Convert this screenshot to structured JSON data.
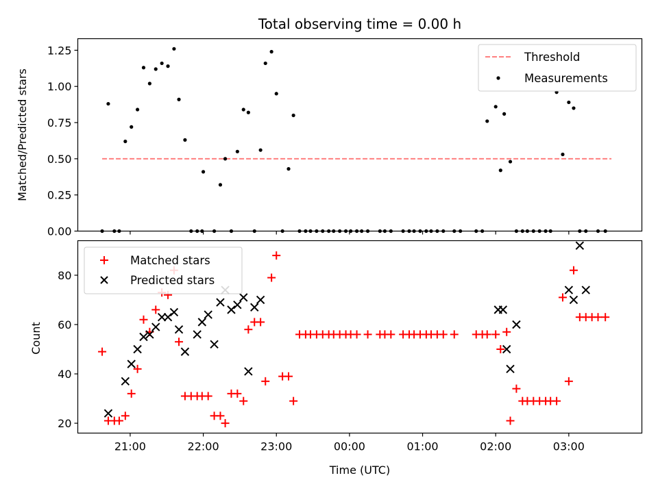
{
  "chart_data": [
    {
      "type": "scatter",
      "title": "Total observing time = 0.00 h",
      "ylabel": "Matched/Predicted stars",
      "xlabel": "",
      "ylim": [
        0,
        1.33
      ],
      "yticks": [
        0.0,
        0.25,
        0.5,
        0.75,
        1.0,
        1.25
      ],
      "ytick_labels": [
        "0.00",
        "0.25",
        "0.50",
        "0.75",
        "1.00",
        "1.25"
      ],
      "legend_position": "top-right",
      "legend": [
        "Threshold",
        "Measurements"
      ],
      "threshold": {
        "name": "Threshold",
        "y": 0.5,
        "x_start": "20:37",
        "x_end": "03:35",
        "color": "#ff7f7f",
        "style": "dashed"
      },
      "series": [
        {
          "name": "Measurements",
          "color": "#000000",
          "marker": "dot",
          "x": [
            "20:37",
            "20:42",
            "20:47",
            "20:51",
            "20:56",
            "21:01",
            "21:06",
            "21:11",
            "21:16",
            "21:21",
            "21:26",
            "21:31",
            "21:36",
            "21:40",
            "21:45",
            "21:50",
            "21:55",
            "21:59",
            "22:00",
            "22:09",
            "22:14",
            "22:18",
            "22:23",
            "22:28",
            "22:33",
            "22:37",
            "22:42",
            "22:47",
            "22:51",
            "22:56",
            "23:00",
            "23:05",
            "23:10",
            "23:14",
            "23:19",
            "23:24",
            "23:28",
            "23:33",
            "23:38",
            "23:43",
            "23:47",
            "23:52",
            "23:57",
            "00:01",
            "00:06",
            "00:10",
            "00:15",
            "00:25",
            "00:29",
            "00:34",
            "00:44",
            "00:49",
            "00:53",
            "00:58",
            "01:03",
            "01:07",
            "01:12",
            "01:17",
            "01:26",
            "01:31",
            "01:44",
            "01:49",
            "01:53",
            "02:00",
            "02:04",
            "02:07",
            "02:12",
            "02:17",
            "02:22",
            "02:26",
            "02:31",
            "02:36",
            "02:41",
            "02:45",
            "02:50",
            "02:55",
            "03:00",
            "03:04",
            "03:09",
            "03:14",
            "03:24",
            "03:30"
          ],
          "y": [
            0.0,
            0.88,
            0.0,
            0.0,
            0.62,
            0.72,
            0.84,
            1.13,
            1.02,
            1.12,
            1.16,
            1.14,
            1.26,
            0.91,
            0.63,
            0.0,
            0.0,
            0.0,
            0.41,
            0.0,
            0.32,
            0.5,
            0.0,
            0.55,
            0.84,
            0.82,
            0.0,
            0.56,
            1.16,
            1.24,
            0.95,
            0.0,
            0.43,
            0.8,
            0.0,
            0.0,
            0.0,
            0.0,
            0.0,
            0.0,
            0.0,
            0.0,
            0.0,
            0.0,
            0.0,
            0.0,
            0.0,
            0.0,
            0.0,
            0.0,
            0.0,
            0.0,
            0.0,
            0.0,
            0.0,
            0.0,
            0.0,
            0.0,
            0.0,
            0.0,
            0.0,
            0.0,
            0.76,
            0.86,
            0.42,
            0.81,
            0.48,
            0.0,
            0.0,
            0.0,
            0.0,
            0.0,
            0.0,
            0.0,
            0.96,
            0.53,
            0.89,
            0.85,
            0.0,
            0.0,
            0.0,
            0.0
          ]
        }
      ]
    },
    {
      "type": "scatter",
      "title": "",
      "ylabel": "Count",
      "xlabel": "Time (UTC)",
      "ylim": [
        16,
        94
      ],
      "yticks": [
        20,
        40,
        60,
        80
      ],
      "ytick_labels": [
        "20",
        "40",
        "60",
        "80"
      ],
      "x_range": [
        "20:17",
        "04:00"
      ],
      "xticks": [
        "21:00",
        "22:00",
        "23:00",
        "00:00",
        "01:00",
        "02:00",
        "03:00"
      ],
      "xtick_labels": [
        "21:00",
        "22:00",
        "23:00",
        "00:00",
        "01:00",
        "02:00",
        "03:00"
      ],
      "legend_position": "top-left",
      "legend": [
        "Matched stars",
        "Predicted stars"
      ],
      "series": [
        {
          "name": "Matched stars",
          "color": "#ff0000",
          "marker": "plus",
          "x": [
            "20:37",
            "20:42",
            "20:47",
            "20:51",
            "20:56",
            "21:01",
            "21:06",
            "21:11",
            "21:16",
            "21:21",
            "21:26",
            "21:31",
            "21:36",
            "21:40",
            "21:45",
            "21:50",
            "21:55",
            "21:59",
            "22:04",
            "22:09",
            "22:14",
            "22:18",
            "22:23",
            "22:28",
            "22:33",
            "22:37",
            "22:42",
            "22:47",
            "22:51",
            "22:56",
            "23:00",
            "23:05",
            "23:10",
            "23:14",
            "23:19",
            "23:24",
            "23:28",
            "23:33",
            "23:38",
            "23:43",
            "23:47",
            "23:52",
            "23:57",
            "00:01",
            "00:06",
            "00:15",
            "00:25",
            "00:29",
            "00:34",
            "00:44",
            "00:49",
            "00:53",
            "00:58",
            "01:03",
            "01:07",
            "01:12",
            "01:17",
            "01:26",
            "01:44",
            "01:49",
            "01:53",
            "02:00",
            "02:04",
            "02:09",
            "02:12",
            "02:17",
            "02:22",
            "02:26",
            "02:31",
            "02:36",
            "02:41",
            "02:45",
            "02:50",
            "02:55",
            "03:00",
            "03:04",
            "03:09",
            "03:14",
            "03:19",
            "03:24",
            "03:30"
          ],
          "y": [
            49,
            21,
            21,
            21,
            23,
            32,
            42,
            62,
            57,
            66,
            73,
            72,
            82,
            53,
            31,
            31,
            31,
            31,
            31,
            23,
            23,
            20,
            32,
            32,
            29,
            58,
            61,
            61,
            37,
            79,
            88,
            39,
            39,
            29,
            56,
            56,
            56,
            56,
            56,
            56,
            56,
            56,
            56,
            56,
            56,
            56,
            56,
            56,
            56,
            56,
            56,
            56,
            56,
            56,
            56,
            56,
            56,
            56,
            56,
            56,
            56,
            56,
            50,
            57,
            21,
            34,
            29,
            29,
            29,
            29,
            29,
            29,
            29,
            71,
            37,
            82,
            63,
            63,
            63,
            63,
            63
          ]
        },
        {
          "name": "Predicted stars",
          "color": "#000000",
          "marker": "x",
          "x": [
            "20:42",
            "20:56",
            "21:01",
            "21:06",
            "21:11",
            "21:16",
            "21:21",
            "21:26",
            "21:31",
            "21:36",
            "21:40",
            "21:45",
            "21:55",
            "21:59",
            "22:04",
            "22:09",
            "22:14",
            "22:18",
            "22:23",
            "22:28",
            "22:33",
            "22:37",
            "22:42",
            "22:47",
            "22:51",
            "22:56",
            "23:00",
            "23:05",
            "23:10",
            "23:14",
            "02:02",
            "02:06",
            "02:09",
            "02:12",
            "02:17",
            "02:22",
            "02:26",
            "02:31",
            "02:36",
            "02:41",
            "02:45",
            "02:50",
            "02:55",
            "03:00",
            "03:04",
            "03:09",
            "03:14",
            "03:19",
            "03:24"
          ],
          "y": [
            24,
            37,
            44,
            50,
            55,
            56,
            59,
            63,
            63,
            65,
            58,
            49,
            56,
            61,
            64,
            52,
            69,
            74,
            66,
            68,
            71,
            41,
            67,
            70,
            null,
            null,
            null,
            null,
            null,
            null,
            66,
            66,
            50,
            42,
            60,
            null,
            null,
            null,
            null,
            null,
            null,
            null,
            null,
            74,
            70,
            92,
            74,
            null,
            null
          ]
        }
      ]
    }
  ]
}
